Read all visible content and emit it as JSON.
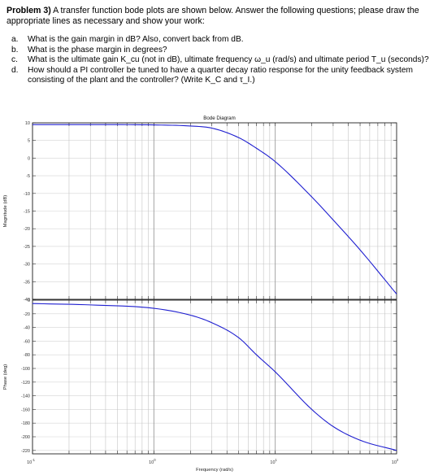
{
  "problem": {
    "label": "Problem 3)",
    "intro": "A transfer function bode plots are shown below. Answer the following questions; please draw the appropriate lines as necessary and show your work:"
  },
  "questions": [
    {
      "letter": "a.",
      "text": "What is the gain margin in dB? Also, convert back from dB.",
      "cont": ""
    },
    {
      "letter": "b.",
      "text": "What is the phase margin in degrees?",
      "cont": ""
    },
    {
      "letter": "c.",
      "text": "What is the ultimate gain K_cu (not in dB), ultimate frequency ω_u (rad/s) and ultimate period T_u (seconds)?",
      "cont": ""
    },
    {
      "letter": "d.",
      "text": "How should a PI controller be tuned to have a quarter decay ratio response for the unity feedback system",
      "cont": "consisting of the plant and the controller? (Write K_C and τ_I.)"
    }
  ],
  "chart_data": [
    {
      "type": "line",
      "title": "Bode Diagram",
      "ylabel": "Magnitude (dB)",
      "xlabel": "",
      "xscale": "log",
      "xlim": [
        0.1,
        100
      ],
      "ylim": [
        -40,
        10
      ],
      "yticks": [
        "10",
        "5",
        "0",
        "-5",
        "-10",
        "-15",
        "-20",
        "-25",
        "-30",
        "-35",
        "-40"
      ],
      "grid": true,
      "color": "#1f1fd0",
      "x": [
        0.1,
        0.3,
        1,
        2,
        3,
        5,
        7,
        10,
        20,
        30,
        50,
        100
      ],
      "y": [
        9.5,
        9.5,
        9.4,
        9.1,
        8.5,
        5.8,
        2.8,
        -1.0,
        -11.0,
        -17.5,
        -26.0,
        -38.5
      ]
    },
    {
      "type": "line",
      "title": "",
      "ylabel": "Phase (deg)",
      "xlabel": "Frequency  (rad/s)",
      "xscale": "log",
      "xlim": [
        0.1,
        100
      ],
      "ylim": [
        -225,
        0
      ],
      "yticks": [
        "0",
        "-20",
        "-40",
        "-60",
        "-80",
        "-100",
        "-120",
        "-140",
        "-160",
        "-180",
        "-200",
        "-220"
      ],
      "xticks": [
        {
          "base": "10",
          "exp": "-1"
        },
        {
          "base": "10",
          "exp": "0"
        },
        {
          "base": "10",
          "exp": "1"
        },
        {
          "base": "10",
          "exp": "2"
        }
      ],
      "grid": true,
      "color": "#1f1fd0",
      "x": [
        0.1,
        0.3,
        1,
        2,
        3,
        5,
        7,
        10,
        20,
        30,
        50,
        100
      ],
      "y": [
        -5,
        -7,
        -12,
        -22,
        -33,
        -55,
        -80,
        -105,
        -160,
        -185,
        -205,
        -220
      ]
    }
  ]
}
